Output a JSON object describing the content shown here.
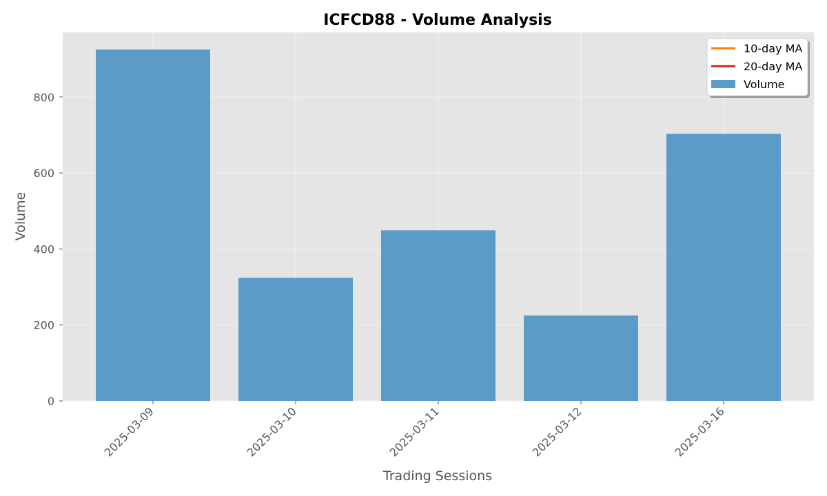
{
  "chart_data": {
    "type": "bar",
    "title": "ICFCD88 - Volume Analysis",
    "xlabel": "Trading Sessions",
    "ylabel": "Volume",
    "categories": [
      "2025-03-09",
      "2025-03-10",
      "2025-03-11",
      "2025-03-12",
      "2025-03-16"
    ],
    "series": [
      {
        "name": "Volume",
        "values": [
          925,
          324,
          449,
          225,
          703
        ],
        "color": "#5b9bc8"
      }
    ],
    "ylim": [
      0,
      970
    ],
    "yticks": [
      0,
      200,
      400,
      600,
      800
    ],
    "grid": true,
    "legend": {
      "placement": "top-right",
      "entries": [
        {
          "label": "10-day MA",
          "kind": "line",
          "color": "#ff7f0e"
        },
        {
          "label": "20-day MA",
          "kind": "line",
          "color": "#d62728"
        },
        {
          "label": "Volume",
          "kind": "patch",
          "color": "#5b9bc8"
        }
      ]
    },
    "colors": {
      "plot_background": "#e5e5e5",
      "grid": "#f2f2f2"
    }
  }
}
